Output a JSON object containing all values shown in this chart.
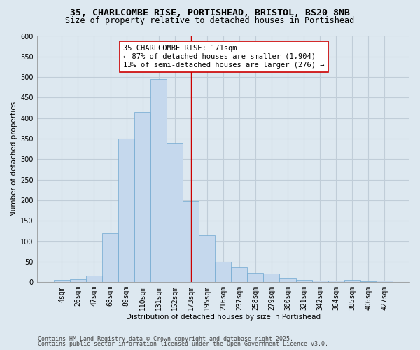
{
  "title_line1": "35, CHARLCOMBE RISE, PORTISHEAD, BRISTOL, BS20 8NB",
  "title_line2": "Size of property relative to detached houses in Portishead",
  "xlabel": "Distribution of detached houses by size in Portishead",
  "ylabel": "Number of detached properties",
  "categories": [
    "4sqm",
    "26sqm",
    "47sqm",
    "68sqm",
    "89sqm",
    "110sqm",
    "131sqm",
    "152sqm",
    "173sqm",
    "195sqm",
    "216sqm",
    "237sqm",
    "258sqm",
    "279sqm",
    "300sqm",
    "321sqm",
    "342sqm",
    "364sqm",
    "385sqm",
    "406sqm",
    "427sqm"
  ],
  "values": [
    5,
    7,
    15,
    120,
    350,
    415,
    495,
    340,
    198,
    115,
    50,
    37,
    23,
    20,
    10,
    5,
    3,
    4,
    5,
    2,
    3
  ],
  "bar_color": "#c5d8ed",
  "bar_edge_color": "#6fa8d0",
  "vline_x_index": 8,
  "vline_color": "#cc0000",
  "annotation_text": "35 CHARLCOMBE RISE: 171sqm\n← 87% of detached houses are smaller (1,904)\n13% of semi-detached houses are larger (276) →",
  "annotation_box_color": "#ffffff",
  "annotation_box_edge_color": "#cc0000",
  "ylim": [
    0,
    600
  ],
  "yticks": [
    0,
    50,
    100,
    150,
    200,
    250,
    300,
    350,
    400,
    450,
    500,
    550,
    600
  ],
  "background_color": "#dde8f0",
  "grid_color": "#c0cdd8",
  "footer_line1": "Contains HM Land Registry data © Crown copyright and database right 2025.",
  "footer_line2": "Contains public sector information licensed under the Open Government Licence v3.0.",
  "title_fontsize": 9.5,
  "subtitle_fontsize": 8.5,
  "axis_label_fontsize": 7.5,
  "tick_fontsize": 7,
  "annotation_fontsize": 7.5,
  "footer_fontsize": 6
}
